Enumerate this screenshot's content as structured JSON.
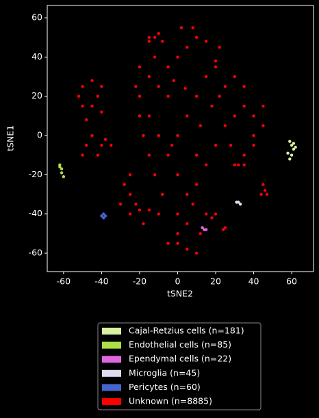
{
  "chart_data": {
    "type": "scatter",
    "x_label": "tSNE2",
    "y_label": "tSNE1",
    "xlim": [
      -68.6,
      71.5
    ],
    "ylim": [
      -69.4,
      66.3
    ],
    "xticks": [
      -60,
      -40,
      -20,
      0,
      20,
      40,
      60
    ],
    "yticks": [
      -60,
      -40,
      -20,
      0,
      20,
      40,
      60
    ],
    "legend_position": "below",
    "series": [
      {
        "name": "Cajal-Retzius cells (n=181)",
        "color": "#d9f0a3",
        "x": [
          59,
          60,
          61,
          58,
          60,
          62,
          59,
          61
        ],
        "y": [
          -3,
          -5,
          -7,
          -9,
          -10,
          -6,
          -12,
          -4
        ]
      },
      {
        "name": "Endothelial cells (n=85)",
        "color": "#addd48",
        "x": [
          -62,
          -61,
          -61,
          -60,
          -62
        ],
        "y": [
          -15,
          -17,
          -19,
          -21,
          -16
        ]
      },
      {
        "name": "Ependymal cells (n=22)",
        "color": "#e066e0",
        "x": [
          13,
          14,
          15
        ],
        "y": [
          -47,
          -48,
          -48
        ]
      },
      {
        "name": "Microglia (n=45)",
        "color": "#e0dcf0",
        "x": [
          31,
          32,
          33
        ],
        "y": [
          -34,
          -34,
          -35
        ]
      },
      {
        "name": "Pericytes (n=60)",
        "color": "#4466cc",
        "x": [
          -39,
          -40,
          -39,
          -38
        ],
        "y": [
          -40,
          -41,
          -42,
          -41
        ]
      },
      {
        "name": "Unknown (n=8885)",
        "color": "#ff0000",
        "x": [
          -15,
          -10,
          -5,
          0,
          5,
          10,
          -20,
          -15,
          -10,
          -5,
          0,
          5,
          10,
          15,
          20,
          25,
          30,
          35,
          40,
          45,
          40,
          35,
          30,
          25,
          20,
          15,
          10,
          5,
          0,
          -5,
          -12,
          -8,
          -15,
          -10,
          2,
          8,
          15,
          20,
          22,
          30,
          35,
          28,
          32,
          35,
          0,
          5,
          0,
          5,
          10,
          -5,
          0,
          15,
          18,
          20,
          -8,
          -12,
          -15,
          -18,
          -20,
          -22,
          -20,
          10,
          12,
          18,
          22,
          -3,
          8,
          12,
          -2,
          4,
          -50,
          -45,
          -40,
          -50,
          -45,
          -40,
          -48,
          -42,
          -52,
          -45,
          -40,
          -48,
          -42,
          -38,
          -35,
          -50,
          -25,
          -28,
          -25,
          -22,
          -20,
          -15,
          -10,
          -18,
          -25,
          -30,
          45,
          46,
          44,
          24,
          25,
          47,
          -15,
          -12,
          40,
          45
        ],
        "y": [
          30,
          25,
          35,
          40,
          45,
          50,
          20,
          10,
          0,
          -10,
          -20,
          -30,
          -25,
          -15,
          -5,
          5,
          10,
          15,
          10,
          5,
          -5,
          -10,
          -15,
          25,
          35,
          30,
          20,
          10,
          0,
          20,
          40,
          48,
          50,
          52,
          55,
          55,
          48,
          38,
          45,
          30,
          25,
          -5,
          -15,
          -15,
          -40,
          -45,
          -55,
          -58,
          -60,
          -55,
          -50,
          -40,
          -42,
          -40,
          -30,
          -20,
          -10,
          0,
          10,
          25,
          35,
          -10,
          5,
          15,
          20,
          -5,
          -35,
          -50,
          28,
          24,
          25,
          28,
          25,
          15,
          15,
          12,
          8,
          20,
          20,
          0,
          -5,
          -5,
          -10,
          -2,
          -5,
          -10,
          -20,
          -25,
          -30,
          -35,
          -38,
          -38,
          -40,
          -45,
          -40,
          -35,
          -25,
          -28,
          -30,
          -48,
          -47,
          -30,
          48,
          50,
          0,
          15
        ]
      }
    ]
  }
}
